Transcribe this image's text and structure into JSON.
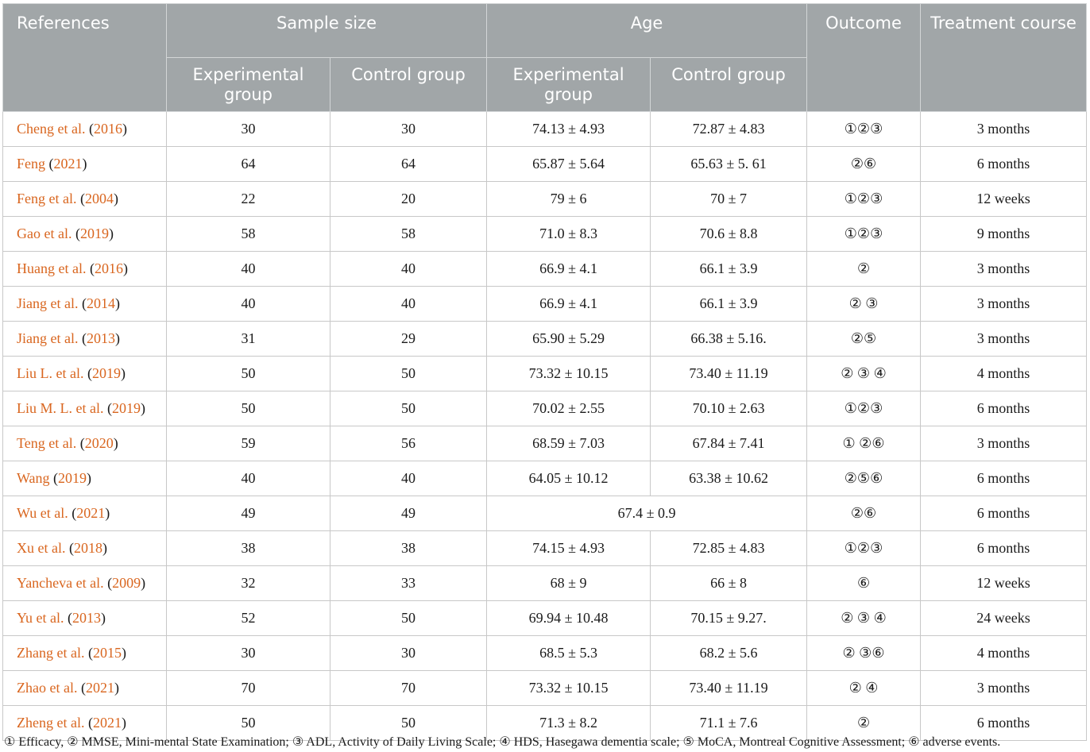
{
  "headers": {
    "references": "References",
    "sample_size": "Sample size",
    "age": "Age",
    "outcome": "Outcome",
    "treatment_course": "Treatment course",
    "experimental_group": "Experimental group",
    "control_group": "Control group"
  },
  "rows": [
    {
      "author": "Cheng et al.",
      "year": "2016",
      "exp_n": "30",
      "ctrl_n": "30",
      "exp_age": "74.13 ± 4.93",
      "ctrl_age": "72.87 ± 4.83",
      "outcome": "①②③",
      "course": "3 months"
    },
    {
      "author": "Feng",
      "year": "2021",
      "exp_n": "64",
      "ctrl_n": "64",
      "exp_age": "65.87 ± 5.64",
      "ctrl_age": "65.63 ± 5. 61",
      "outcome": "②⑥",
      "course": "6 months"
    },
    {
      "author": "Feng et al.",
      "year": "2004",
      "exp_n": "22",
      "ctrl_n": "20",
      "exp_age": "79 ± 6",
      "ctrl_age": "70 ± 7",
      "outcome": "①②③",
      "course": "12 weeks"
    },
    {
      "author": "Gao et al.",
      "year": "2019",
      "exp_n": "58",
      "ctrl_n": "58",
      "exp_age": "71.0 ± 8.3",
      "ctrl_age": "70.6 ± 8.8",
      "outcome": "①②③",
      "course": "9 months"
    },
    {
      "author": "Huang et al.",
      "year": "2016",
      "exp_n": "40",
      "ctrl_n": "40",
      "exp_age": "66.9 ± 4.1",
      "ctrl_age": "66.1 ± 3.9",
      "outcome": "②",
      "course": "3 months"
    },
    {
      "author": "Jiang et al.",
      "year": "2014",
      "exp_n": "40",
      "ctrl_n": "40",
      "exp_age": "66.9 ± 4.1",
      "ctrl_age": "66.1 ± 3.9",
      "outcome": "② ③",
      "course": "3 months"
    },
    {
      "author": "Jiang et al.",
      "year": "2013",
      "exp_n": "31",
      "ctrl_n": "29",
      "exp_age": "65.90 ± 5.29",
      "ctrl_age": "66.38 ± 5.16.",
      "outcome": "②⑤",
      "course": "3 months"
    },
    {
      "author": "Liu L. et al.",
      "year": "2019",
      "exp_n": "50",
      "ctrl_n": "50",
      "exp_age": "73.32 ± 10.15",
      "ctrl_age": "73.40 ± 11.19",
      "outcome": "② ③ ④",
      "course": "4 months"
    },
    {
      "author": "Liu M. L. et al.",
      "year": "2019",
      "exp_n": "50",
      "ctrl_n": "50",
      "exp_age": "70.02 ± 2.55",
      "ctrl_age": "70.10 ± 2.63",
      "outcome": "①②③",
      "course": "6 months"
    },
    {
      "author": "Teng et al.",
      "year": "2020",
      "exp_n": "59",
      "ctrl_n": "56",
      "exp_age": "68.59 ± 7.03",
      "ctrl_age": "67.84 ± 7.41",
      "outcome": "① ②⑥",
      "course": "3 months"
    },
    {
      "author": "Wang",
      "year": "2019",
      "exp_n": "40",
      "ctrl_n": "40",
      "exp_age": "64.05 ± 10.12",
      "ctrl_age": "63.38 ± 10.62",
      "outcome": "②⑤⑥",
      "course": "6 months"
    },
    {
      "author": "Wu et al.",
      "year": "2021",
      "exp_n": "49",
      "ctrl_n": "49",
      "age_combined": "67.4 ± 0.9",
      "outcome": "②⑥",
      "course": "6 months"
    },
    {
      "author": "Xu et al.",
      "year": "2018",
      "exp_n": "38",
      "ctrl_n": "38",
      "exp_age": "74.15 ± 4.93",
      "ctrl_age": "72.85 ± 4.83",
      "outcome": "①②③",
      "course": "6 months"
    },
    {
      "author": "Yancheva et al.",
      "year": "2009",
      "exp_n": "32",
      "ctrl_n": "33",
      "exp_age": "68 ± 9",
      "ctrl_age": "66 ± 8",
      "outcome": "⑥",
      "course": "12 weeks"
    },
    {
      "author": "Yu et al.",
      "year": "2013",
      "exp_n": "52",
      "ctrl_n": "50",
      "exp_age": "69.94 ± 10.48",
      "ctrl_age": "70.15 ± 9.27.",
      "outcome": "② ③ ④",
      "course": "24 weeks"
    },
    {
      "author": "Zhang et al.",
      "year": "2015",
      "exp_n": "30",
      "ctrl_n": "30",
      "exp_age": "68.5 ± 5.3",
      "ctrl_age": "68.2 ± 5.6",
      "outcome": "② ③⑥",
      "course": "4 months"
    },
    {
      "author": "Zhao et al.",
      "year": "2021",
      "exp_n": "70",
      "ctrl_n": "70",
      "exp_age": "73.32 ± 10.15",
      "ctrl_age": "73.40 ± 11.19",
      "outcome": "② ④",
      "course": "3 months"
    },
    {
      "author": "Zheng et al.",
      "year": "2021",
      "exp_n": "50",
      "ctrl_n": "50",
      "exp_age": "71.3 ± 8.2",
      "ctrl_age": "71.1 ± 7.6",
      "outcome": "②",
      "course": "6 months"
    }
  ],
  "footnote": "① Efficacy, ② MMSE, Mini-mental State Examination; ③ ADL, Activity of Daily Living Scale; ④ HDS, Hasegawa dementia scale; ⑤ MoCA, Montreal Cognitive Assessment; ⑥ adverse events.",
  "colors": {
    "header_bg": "#a1a6a8",
    "header_text": "#ffffff",
    "link": "#d9661f"
  }
}
